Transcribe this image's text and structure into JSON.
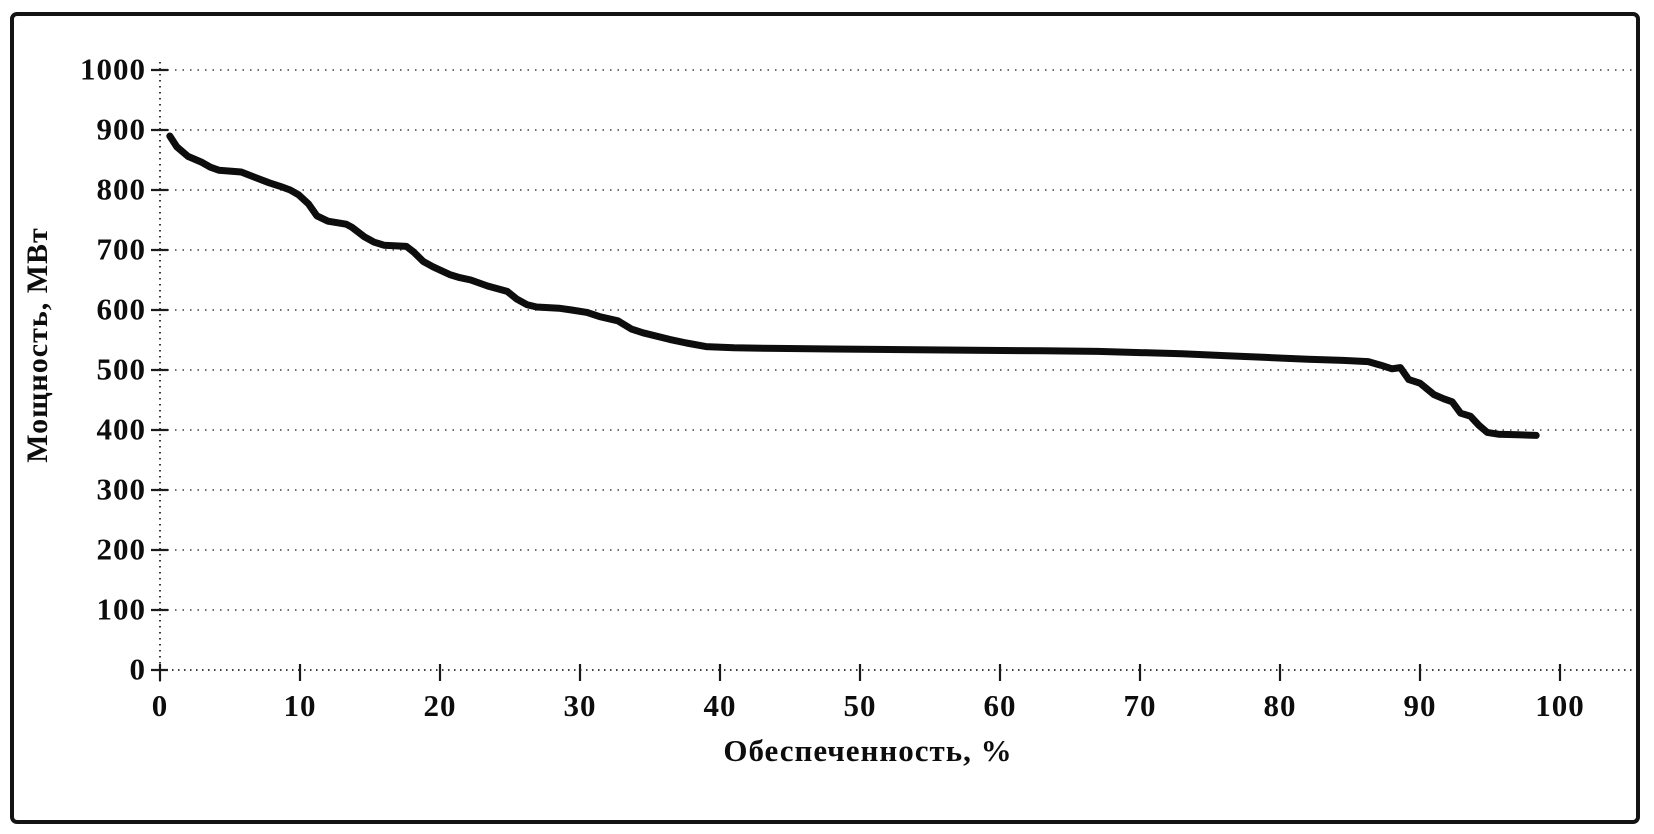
{
  "figure": {
    "background": "#ffffff",
    "border_color": "#141414",
    "ink_color": "#0d0d0d"
  },
  "chart_data": {
    "type": "line",
    "title": "",
    "xlabel": "Обеспеченность, %",
    "ylabel": "Мощность, МВт",
    "xlim": [
      0,
      100
    ],
    "ylim": [
      0,
      1000
    ],
    "x_ticks": [
      0,
      10,
      20,
      30,
      40,
      50,
      60,
      70,
      80,
      90,
      100
    ],
    "y_ticks": [
      0,
      100,
      200,
      300,
      400,
      500,
      600,
      700,
      800,
      900,
      1000
    ],
    "grid": "horizontal-dotted",
    "legend": "none",
    "line_color": "#0d0d0d",
    "gridline_color": "#3a3a3a",
    "points": [
      [
        0.7,
        890
      ],
      [
        1.2,
        872
      ],
      [
        2.0,
        856
      ],
      [
        3.0,
        846
      ],
      [
        3.6,
        838
      ],
      [
        4.2,
        833
      ],
      [
        5.8,
        830
      ],
      [
        6.9,
        820
      ],
      [
        7.8,
        812
      ],
      [
        8.6,
        806
      ],
      [
        9.3,
        800
      ],
      [
        9.9,
        792
      ],
      [
        10.6,
        777
      ],
      [
        11.2,
        757
      ],
      [
        12.0,
        748
      ],
      [
        13.3,
        743
      ],
      [
        13.7,
        738
      ],
      [
        14.6,
        722
      ],
      [
        15.3,
        713
      ],
      [
        16.0,
        708
      ],
      [
        17.6,
        706
      ],
      [
        18.1,
        697
      ],
      [
        18.8,
        681
      ],
      [
        19.5,
        672
      ],
      [
        20.7,
        659
      ],
      [
        21.4,
        654
      ],
      [
        22.2,
        650
      ],
      [
        23.4,
        640
      ],
      [
        24.8,
        631
      ],
      [
        25.5,
        618
      ],
      [
        26.2,
        609
      ],
      [
        26.9,
        605
      ],
      [
        28.5,
        603
      ],
      [
        29.4,
        600
      ],
      [
        30.5,
        596
      ],
      [
        31.4,
        589
      ],
      [
        32.7,
        582
      ],
      [
        33.7,
        568
      ],
      [
        34.5,
        562
      ],
      [
        36.4,
        551
      ],
      [
        37.6,
        545
      ],
      [
        39.0,
        539
      ],
      [
        41.0,
        537
      ],
      [
        44.0,
        536
      ],
      [
        48.0,
        535
      ],
      [
        53.0,
        534
      ],
      [
        58.0,
        533
      ],
      [
        63.0,
        532
      ],
      [
        67.0,
        531
      ],
      [
        70.0,
        529
      ],
      [
        73.0,
        527
      ],
      [
        76.0,
        524
      ],
      [
        79.0,
        521
      ],
      [
        82.0,
        518
      ],
      [
        84.5,
        516
      ],
      [
        86.3,
        514
      ],
      [
        87.2,
        508
      ],
      [
        88.0,
        502
      ],
      [
        88.6,
        504
      ],
      [
        89.2,
        484
      ],
      [
        90.0,
        478
      ],
      [
        91.0,
        459
      ],
      [
        91.7,
        452
      ],
      [
        92.3,
        447
      ],
      [
        92.9,
        428
      ],
      [
        93.6,
        423
      ],
      [
        94.2,
        408
      ],
      [
        94.8,
        396
      ],
      [
        95.6,
        393
      ],
      [
        97.0,
        392
      ],
      [
        98.3,
        391
      ]
    ]
  }
}
